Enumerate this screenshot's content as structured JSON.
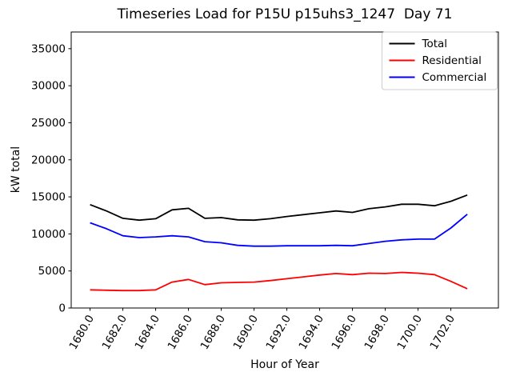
{
  "figure": {
    "background": "#ffffff",
    "frame_color": "#000000"
  },
  "chart_data": {
    "type": "line",
    "title": "Timeseries Load for P15U p15uhs3_1247  Day 71",
    "xlabel": "Hour of Year",
    "ylabel": "kW total",
    "x": [
      1680,
      1681,
      1682,
      1683,
      1684,
      1685,
      1686,
      1687,
      1688,
      1689,
      1690,
      1691,
      1692,
      1693,
      1694,
      1695,
      1696,
      1697,
      1698,
      1699,
      1700,
      1701,
      1702,
      1703
    ],
    "series": [
      {
        "name": "Total",
        "color": "#000000",
        "values": [
          13950,
          13100,
          12100,
          11850,
          12050,
          13250,
          13450,
          12100,
          12200,
          11900,
          11850,
          12050,
          12350,
          12600,
          12850,
          13100,
          12900,
          13400,
          13650,
          14000,
          14000,
          13800,
          14400,
          15250
        ]
      },
      {
        "name": "Residential",
        "color": "#ff0000",
        "values": [
          2450,
          2400,
          2350,
          2350,
          2450,
          3500,
          3850,
          3150,
          3400,
          3450,
          3500,
          3700,
          3950,
          4200,
          4450,
          4650,
          4500,
          4700,
          4650,
          4800,
          4700,
          4500,
          3600,
          2600
        ]
      },
      {
        "name": "Commercial",
        "color": "#0000ff",
        "values": [
          11500,
          10700,
          9750,
          9500,
          9600,
          9750,
          9600,
          8950,
          8800,
          8450,
          8350,
          8350,
          8400,
          8400,
          8400,
          8450,
          8400,
          8700,
          9000,
          9200,
          9300,
          9300,
          10800,
          12650
        ]
      }
    ],
    "xticks": [
      1680,
      1682,
      1684,
      1686,
      1688,
      1690,
      1692,
      1694,
      1696,
      1698,
      1700,
      1702
    ],
    "xtick_labels": [
      "1680.0",
      "1682.0",
      "1684.0",
      "1686.0",
      "1688.0",
      "1690.0",
      "1692.0",
      "1694.0",
      "1696.0",
      "1698.0",
      "1700.0",
      "1702.0"
    ],
    "yticks": [
      0,
      5000,
      10000,
      15000,
      20000,
      25000,
      30000,
      35000
    ],
    "ytick_labels": [
      "0",
      "5000",
      "10000",
      "15000",
      "20000",
      "25000",
      "30000",
      "35000"
    ],
    "xlim": [
      1678.85,
      1704.9
    ],
    "ylim": [
      0,
      37250
    ],
    "xtick_rotation": 60,
    "grid": false,
    "legend_position": "upper right",
    "legend_border_color": "#cccccc"
  }
}
